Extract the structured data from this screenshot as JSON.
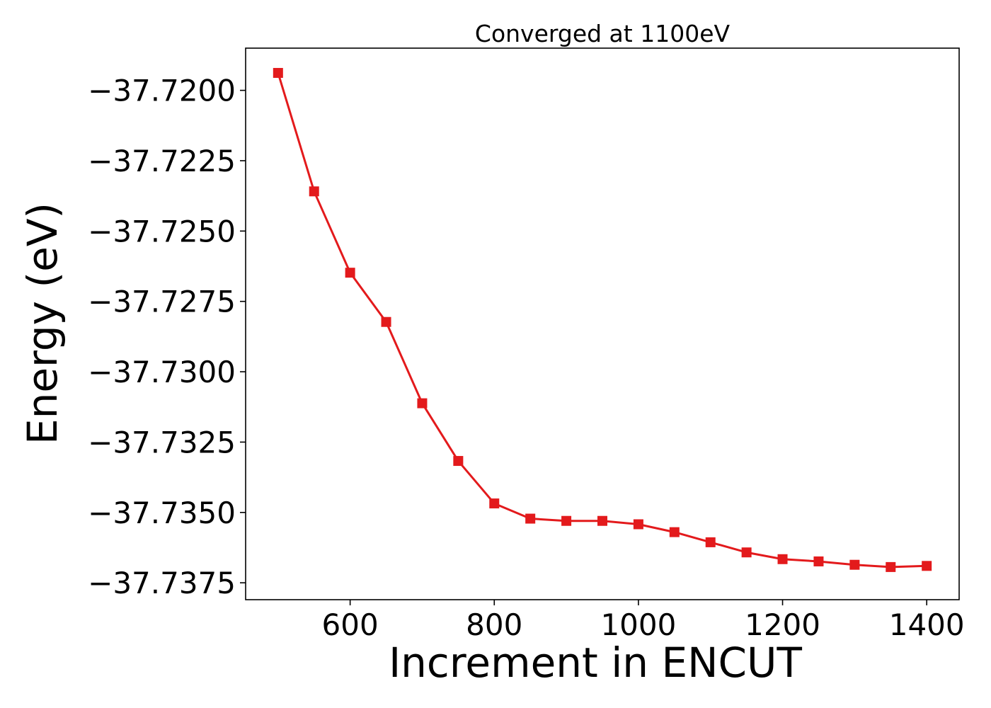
{
  "chart_data": {
    "type": "line",
    "title": "Converged at 1100eV",
    "xlabel": "Increment in ENCUT",
    "ylabel": "Energy (eV)",
    "x": [
      500,
      550,
      600,
      650,
      700,
      750,
      800,
      850,
      900,
      950,
      1000,
      1050,
      1100,
      1150,
      1200,
      1250,
      1300,
      1350,
      1400
    ],
    "series": [
      {
        "values": [
          -37.71938,
          -37.72359,
          -37.72648,
          -37.72823,
          -37.73112,
          -37.73317,
          -37.73468,
          -37.73522,
          -37.7353,
          -37.7353,
          -37.73542,
          -37.7357,
          -37.73606,
          -37.73642,
          -37.73666,
          -37.73674,
          -37.73686,
          -37.73694,
          -37.7369
        ],
        "color": "#e31a1c",
        "marker": "square"
      }
    ],
    "xlim": [
      455,
      1445
    ],
    "ylim": [
      -37.7381,
      -37.7185
    ],
    "xticks": [
      600,
      800,
      1000,
      1200,
      1400
    ],
    "xtick_labels": [
      "600",
      "800",
      "1000",
      "1200",
      "1400"
    ],
    "yticks": [
      -37.72,
      -37.7225,
      -37.725,
      -37.7275,
      -37.73,
      -37.7325,
      -37.735,
      -37.7375
    ],
    "ytick_labels": [
      "−37.7200",
      "−37.7225",
      "−37.7250",
      "−37.7275",
      "−37.7300",
      "−37.7325",
      "−37.7350",
      "−37.7375"
    ],
    "grid": false,
    "legend": "none"
  }
}
